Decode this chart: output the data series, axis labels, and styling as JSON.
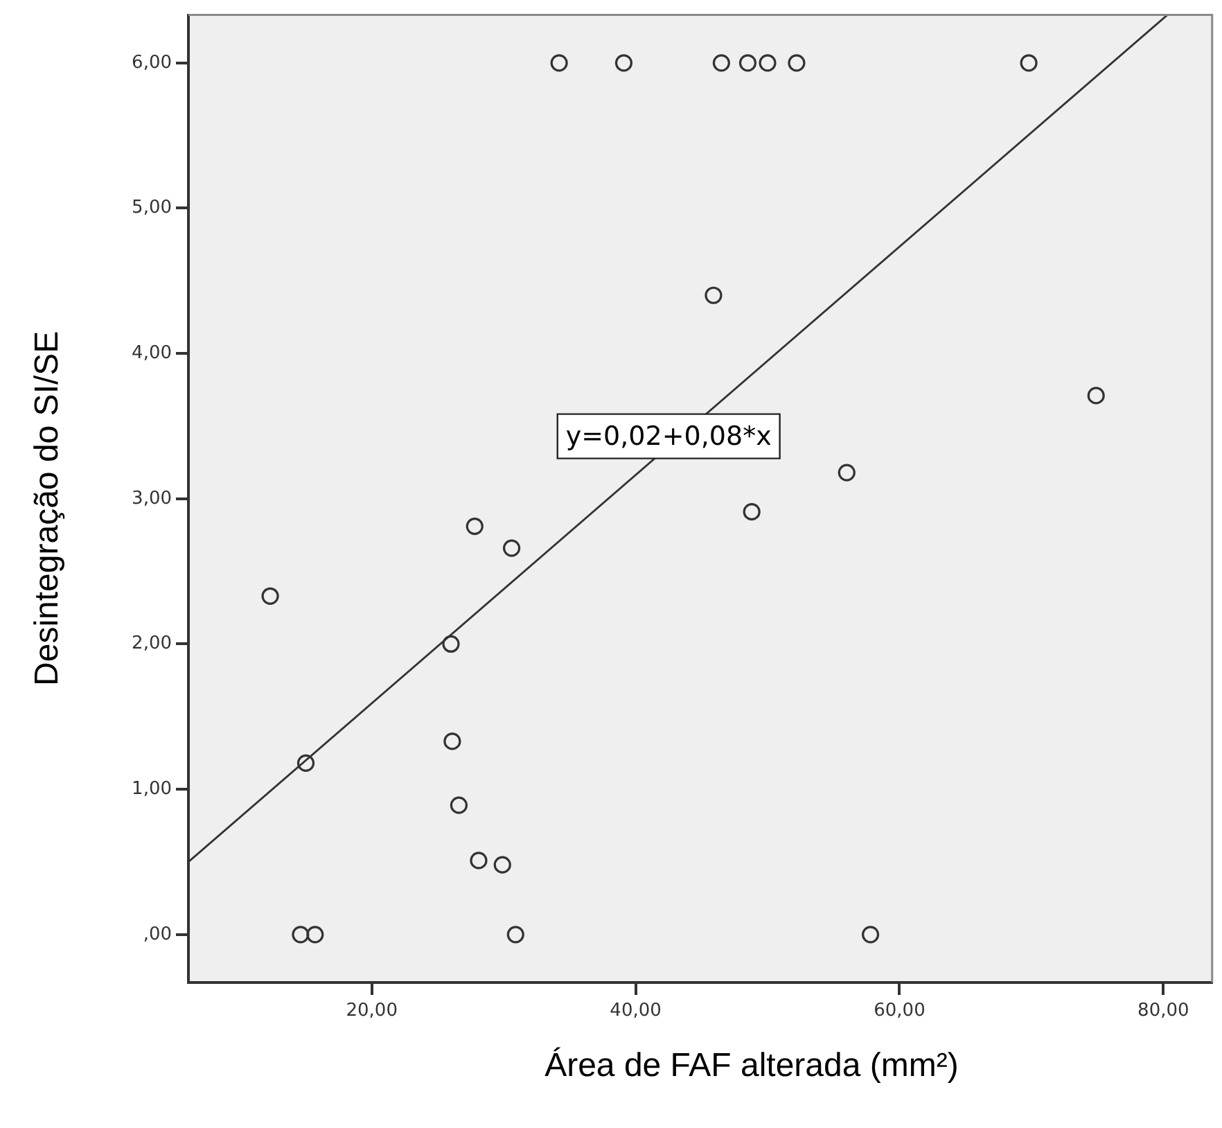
{
  "chart_data": {
    "type": "scatter",
    "xlabel": "Área de FAF alterada (mm²)",
    "ylabel": "Desintegração do SI/SE",
    "xlim": [
      6.1,
      83.7
    ],
    "ylim": [
      -0.33,
      6.33
    ],
    "xticks": [
      {
        "value": 20,
        "label": "20,00"
      },
      {
        "value": 40,
        "label": "40,00"
      },
      {
        "value": 60,
        "label": "60,00"
      },
      {
        "value": 80,
        "label": "80,00"
      }
    ],
    "yticks": [
      {
        "value": 0,
        "label": ",00"
      },
      {
        "value": 1,
        "label": "1,00"
      },
      {
        "value": 2,
        "label": "2,00"
      },
      {
        "value": 3,
        "label": "3,00"
      },
      {
        "value": 4,
        "label": "4,00"
      },
      {
        "value": 5,
        "label": "5,00"
      },
      {
        "value": 6,
        "label": "6,00"
      }
    ],
    "series": [
      {
        "marker": "circle",
        "color": "#333333",
        "x": [
          34.2,
          39.1,
          46.5,
          48.5,
          50.0,
          52.2,
          69.8,
          45.9,
          74.9,
          56.0,
          48.8,
          12.3,
          27.8,
          30.6,
          26.0,
          26.1,
          15.0,
          26.6,
          28.1,
          29.9,
          14.6,
          15.7,
          30.9,
          57.8
        ],
        "values": [
          6,
          6,
          6,
          6,
          6,
          6,
          6,
          4.4,
          3.71,
          3.18,
          2.91,
          2.33,
          2.81,
          2.66,
          2.0,
          1.33,
          1.18,
          0.89,
          0.51,
          0.48,
          0,
          0,
          0,
          0
        ]
      },
      {
        "type": "line",
        "color": "#333333",
        "x": [
          6.1,
          80.3
        ],
        "values": [
          0.5,
          6.33
        ]
      }
    ],
    "annotations": [
      {
        "text": "y=0,02+0,08*x",
        "x": 42.5,
        "y": 3.43
      }
    ]
  }
}
